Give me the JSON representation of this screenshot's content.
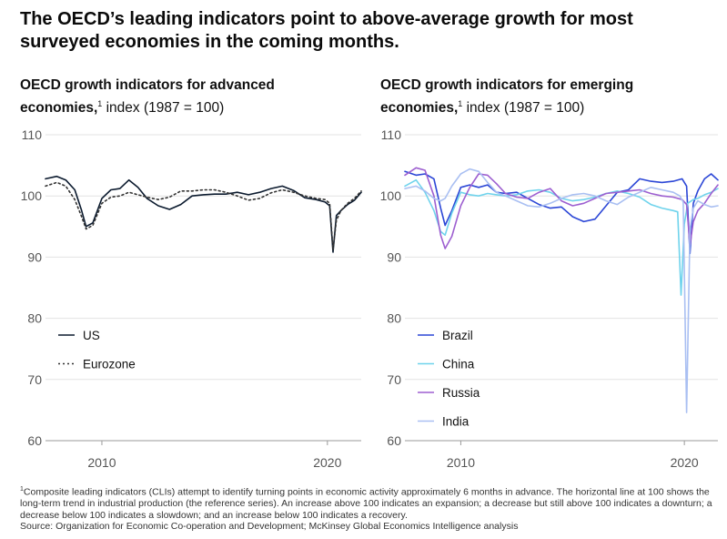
{
  "headline": "The OECD’s leading indicators point to above-average growth for most surveyed economies in the coming months.",
  "panels": [
    {
      "title_bold": "OECD growth indicators for advanced economies,",
      "title_sup": "1",
      "title_rest": " index (1987 = 100)"
    },
    {
      "title_bold": "OECD growth indicators for emerging economies,",
      "title_sup": "1",
      "title_rest": " index (1987 = 100)"
    }
  ],
  "footnote": {
    "sup": "1",
    "text": "Composite leading indicators (CLIs) attempt to identify turning points in economic activity approximately 6 months in advance. The horizontal line at 100 shows the long-term trend in industrial production (the reference series). An increase above 100 indicates an expansion; a decrease but still above 100 indicates a downturn; a decrease below 100 indicates a slowdown; and an increase below 100 indicates a recovery.",
    "source": "Source: Organization for Economic Co-operation and Development; McKinsey Global Economics Intelligence analysis"
  },
  "chart_data": [
    {
      "type": "line",
      "y_ticks": [
        110,
        100,
        90,
        80,
        70,
        60
      ],
      "ylim": [
        60,
        110
      ],
      "xlim": [
        2007.5,
        2021.5
      ],
      "x_ticks": [
        2010,
        2020
      ],
      "grid": true,
      "legend_position": "bottom-left",
      "series": [
        {
          "name": "US",
          "color": "#0b1a2e",
          "dash": "",
          "x": [
            2007.5,
            2008.0,
            2008.4,
            2008.8,
            2009.1,
            2009.3,
            2009.6,
            2010.0,
            2010.4,
            2010.8,
            2011.2,
            2011.6,
            2012.0,
            2012.5,
            2013.0,
            2013.5,
            2014.0,
            2014.5,
            2015.0,
            2015.5,
            2016.0,
            2016.5,
            2017.0,
            2017.5,
            2018.0,
            2018.5,
            2019.0,
            2019.5,
            2019.9,
            2020.1,
            2020.25,
            2020.4,
            2020.6,
            2020.9,
            2021.2,
            2021.5
          ],
          "y": [
            102.8,
            103.2,
            102.6,
            101.0,
            97.6,
            95.0,
            95.6,
            99.6,
            101.0,
            101.2,
            102.6,
            101.4,
            99.6,
            98.4,
            97.8,
            98.6,
            100.0,
            100.2,
            100.3,
            100.3,
            100.6,
            100.2,
            100.6,
            101.2,
            101.6,
            100.9,
            99.7,
            99.4,
            99.0,
            98.4,
            90.8,
            96.8,
            97.6,
            98.6,
            99.3,
            100.6
          ]
        },
        {
          "name": "Eurozone",
          "color": "#333333",
          "dash": "2,3",
          "x": [
            2007.5,
            2008.0,
            2008.4,
            2008.8,
            2009.1,
            2009.3,
            2009.6,
            2010.0,
            2010.4,
            2010.8,
            2011.2,
            2011.6,
            2012.0,
            2012.5,
            2013.0,
            2013.5,
            2014.0,
            2014.5,
            2015.0,
            2015.5,
            2016.0,
            2016.5,
            2017.0,
            2017.5,
            2018.0,
            2018.5,
            2019.0,
            2019.5,
            2019.9,
            2020.1,
            2020.25,
            2020.4,
            2020.6,
            2020.9,
            2021.2,
            2021.5
          ],
          "y": [
            101.6,
            102.2,
            101.6,
            99.4,
            96.6,
            94.6,
            95.2,
            98.8,
            99.8,
            100.0,
            100.6,
            100.2,
            99.8,
            99.4,
            99.8,
            100.8,
            100.8,
            101.0,
            101.0,
            100.6,
            100.0,
            99.3,
            99.6,
            100.5,
            101.0,
            100.6,
            100.0,
            99.6,
            99.4,
            98.8,
            91.2,
            96.0,
            97.6,
            98.8,
            99.6,
            100.8
          ]
        }
      ]
    },
    {
      "type": "line",
      "y_ticks": [
        110,
        100,
        90,
        80,
        70,
        60
      ],
      "ylim": [
        60,
        110
      ],
      "xlim": [
        2007.5,
        2021.5
      ],
      "x_ticks": [
        2010,
        2020
      ],
      "grid": true,
      "legend_position": "bottom-left",
      "series": [
        {
          "name": "Brazil",
          "color": "#2b46d6",
          "dash": "",
          "x": [
            2007.5,
            2008.0,
            2008.4,
            2008.8,
            2009.1,
            2009.3,
            2009.6,
            2010.0,
            2010.4,
            2010.8,
            2011.2,
            2011.6,
            2012.0,
            2012.5,
            2013.0,
            2013.5,
            2014.0,
            2014.5,
            2015.0,
            2015.5,
            2016.0,
            2016.5,
            2017.0,
            2017.5,
            2018.0,
            2018.5,
            2019.0,
            2019.5,
            2019.9,
            2020.1,
            2020.25,
            2020.4,
            2020.6,
            2020.9,
            2021.2,
            2021.5
          ],
          "y": [
            104.0,
            103.4,
            103.6,
            102.8,
            98.0,
            95.2,
            97.6,
            101.4,
            101.8,
            101.4,
            101.8,
            100.6,
            100.4,
            100.6,
            99.6,
            98.6,
            98.0,
            98.2,
            96.6,
            95.8,
            96.2,
            98.4,
            100.6,
            101.0,
            102.8,
            102.4,
            102.2,
            102.4,
            102.8,
            101.6,
            90.6,
            98.8,
            100.8,
            102.8,
            103.6,
            102.6
          ]
        },
        {
          "name": "China",
          "color": "#6fd3ec",
          "dash": "",
          "x": [
            2007.5,
            2008.0,
            2008.4,
            2008.8,
            2009.1,
            2009.3,
            2009.6,
            2010.0,
            2010.4,
            2010.8,
            2011.2,
            2011.6,
            2012.0,
            2012.5,
            2013.0,
            2013.5,
            2014.0,
            2014.5,
            2015.0,
            2015.5,
            2016.0,
            2016.5,
            2017.0,
            2017.5,
            2018.0,
            2018.5,
            2019.0,
            2019.5,
            2019.7,
            2019.85,
            2020.0,
            2020.15,
            2020.4,
            2020.6,
            2020.9,
            2021.2,
            2021.5
          ],
          "y": [
            101.6,
            102.6,
            100.6,
            97.6,
            94.2,
            93.6,
            97.2,
            100.6,
            100.2,
            100.0,
            100.4,
            100.2,
            100.0,
            100.2,
            100.8,
            101.0,
            100.6,
            99.6,
            99.2,
            99.4,
            99.8,
            100.4,
            100.8,
            100.4,
            99.8,
            98.6,
            98.0,
            97.6,
            97.4,
            83.8,
            95.4,
            98.8,
            99.4,
            99.6,
            100.2,
            100.6,
            101.2
          ]
        },
        {
          "name": "Russia",
          "color": "#9d5fd0",
          "dash": "",
          "x": [
            2007.5,
            2008.0,
            2008.4,
            2008.8,
            2009.1,
            2009.3,
            2009.6,
            2010.0,
            2010.4,
            2010.8,
            2011.2,
            2011.6,
            2012.0,
            2012.5,
            2013.0,
            2013.5,
            2014.0,
            2014.5,
            2015.0,
            2015.5,
            2016.0,
            2016.5,
            2017.0,
            2017.5,
            2018.0,
            2018.5,
            2019.0,
            2019.5,
            2019.9,
            2020.1,
            2020.25,
            2020.4,
            2020.6,
            2020.9,
            2021.2,
            2021.5
          ],
          "y": [
            103.4,
            104.6,
            104.2,
            100.0,
            93.6,
            91.4,
            93.4,
            98.4,
            101.4,
            103.6,
            103.4,
            102.0,
            100.4,
            99.8,
            99.6,
            100.6,
            101.2,
            99.2,
            98.4,
            98.8,
            99.6,
            100.4,
            100.6,
            100.8,
            101.0,
            100.4,
            100.0,
            99.8,
            99.4,
            98.6,
            92.0,
            95.8,
            97.6,
            98.8,
            100.4,
            101.8
          ]
        },
        {
          "name": "India",
          "color": "#a9bff2",
          "dash": "",
          "x": [
            2007.5,
            2008.0,
            2008.4,
            2008.8,
            2009.1,
            2009.3,
            2009.6,
            2010.0,
            2010.4,
            2010.8,
            2011.2,
            2011.6,
            2012.0,
            2012.5,
            2013.0,
            2013.5,
            2014.0,
            2014.5,
            2015.0,
            2015.5,
            2016.0,
            2016.5,
            2017.0,
            2017.5,
            2018.0,
            2018.5,
            2019.0,
            2019.5,
            2019.8,
            2019.95,
            2020.1,
            2020.25,
            2020.4,
            2020.6,
            2020.9,
            2021.2,
            2021.5
          ],
          "y": [
            101.2,
            101.6,
            100.8,
            99.6,
            99.2,
            99.6,
            101.6,
            103.6,
            104.4,
            104.0,
            102.2,
            100.6,
            100.0,
            99.2,
            98.4,
            98.2,
            98.8,
            99.6,
            100.2,
            100.4,
            100.0,
            99.2,
            98.6,
            99.8,
            100.6,
            101.4,
            101.0,
            100.6,
            100.0,
            99.0,
            64.6,
            94.6,
            98.0,
            99.2,
            98.6,
            98.2,
            98.4
          ]
        }
      ]
    }
  ]
}
